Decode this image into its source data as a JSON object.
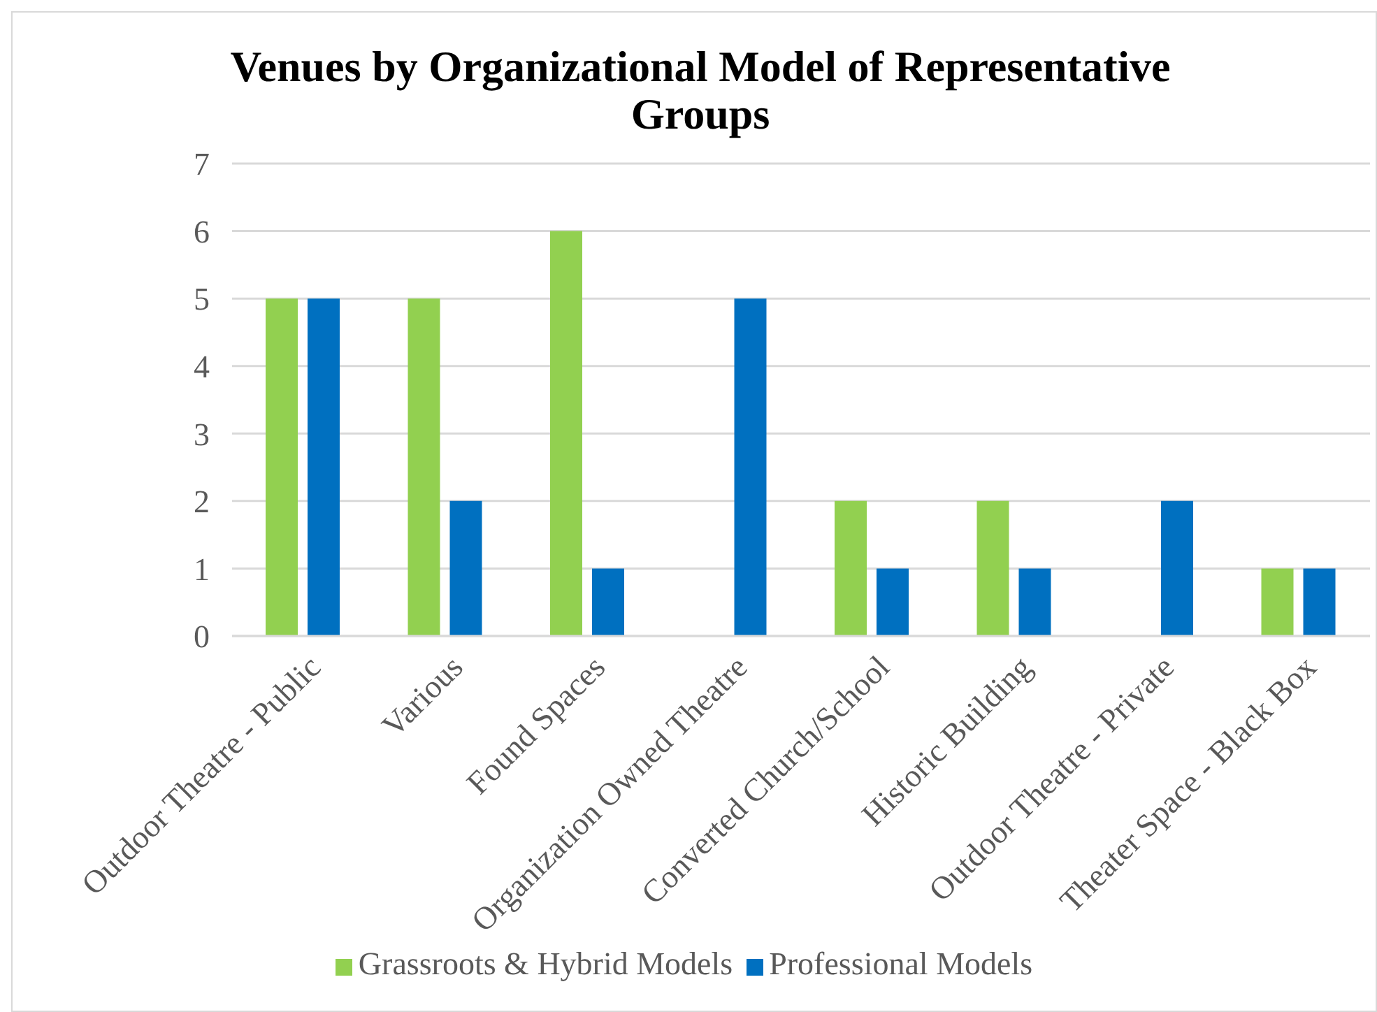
{
  "chart_data": {
    "type": "bar",
    "title": "Venues by Organizational Model of Representative Groups",
    "categories": [
      "Outdoor Theatre - Public",
      "Various",
      "Found Spaces",
      "Organization Owned Theatre",
      "Converted Church/School",
      "Historic Building",
      "Outdoor Theatre - Private",
      "Theater Space - Black Box"
    ],
    "series": [
      {
        "name": "Grassroots & Hybrid Models",
        "color": "#92d050",
        "values": [
          5,
          5,
          6,
          null,
          2,
          2,
          null,
          1
        ]
      },
      {
        "name": "Professional Models",
        "color": "#0070c0",
        "values": [
          5,
          2,
          1,
          5,
          1,
          1,
          2,
          1
        ]
      }
    ],
    "ylim": [
      0,
      7
    ],
    "yticks": [
      0,
      1,
      2,
      3,
      4,
      5,
      6,
      7
    ],
    "grid": "y",
    "legend": "bottom"
  }
}
